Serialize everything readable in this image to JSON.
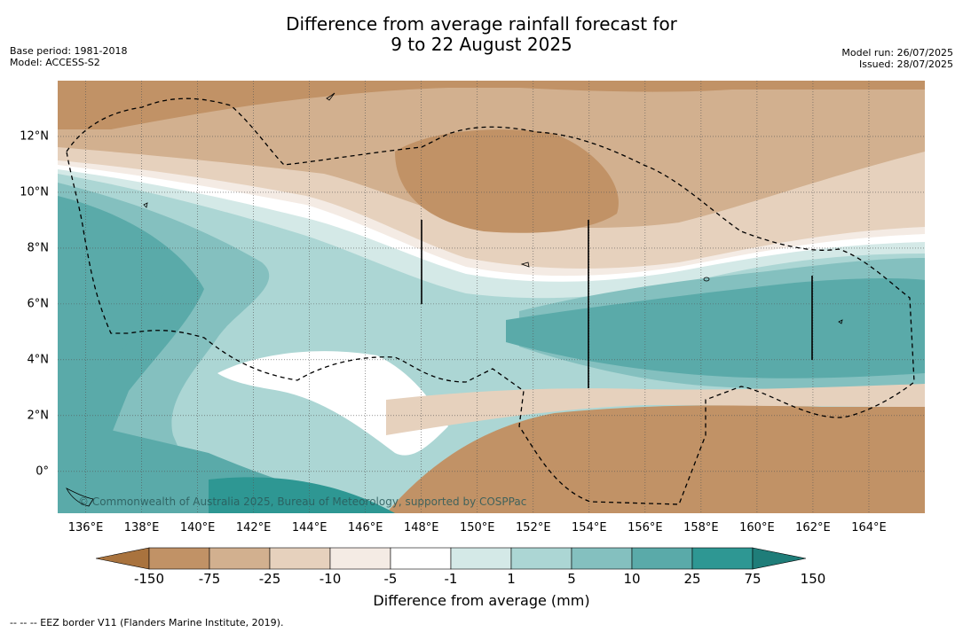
{
  "title": {
    "line1": "Difference from average rainfall forecast for",
    "line2": "9 to 22 August 2025"
  },
  "meta_left": {
    "base_period": "Base period: 1981-2018",
    "model": "Model: ACCESS-S2"
  },
  "meta_right": {
    "model_run": "Model run: 26/07/2025",
    "issued": "Issued: 28/07/2025"
  },
  "map": {
    "lon_range": [
      135,
      166
    ],
    "lat_range": [
      -1.5,
      14
    ],
    "lat_ticks": [
      {
        "value": 12,
        "label": "12°N"
      },
      {
        "value": 10,
        "label": "10°N"
      },
      {
        "value": 8,
        "label": "8°N"
      },
      {
        "value": 6,
        "label": "6°N"
      },
      {
        "value": 4,
        "label": "4°N"
      },
      {
        "value": 2,
        "label": "2°N"
      },
      {
        "value": 0,
        "label": "0°"
      }
    ],
    "lon_ticks": [
      {
        "value": 136,
        "label": "136°E"
      },
      {
        "value": 138,
        "label": "138°E"
      },
      {
        "value": 140,
        "label": "140°E"
      },
      {
        "value": 142,
        "label": "142°E"
      },
      {
        "value": 144,
        "label": "144°E"
      },
      {
        "value": 146,
        "label": "146°E"
      },
      {
        "value": 148,
        "label": "148°E"
      },
      {
        "value": 150,
        "label": "150°E"
      },
      {
        "value": 152,
        "label": "152°E"
      },
      {
        "value": 154,
        "label": "154°E"
      },
      {
        "value": 156,
        "label": "156°E"
      },
      {
        "value": 158,
        "label": "158°E"
      },
      {
        "value": 160,
        "label": "160°E"
      },
      {
        "value": 162,
        "label": "162°E"
      },
      {
        "value": 164,
        "label": "164°E"
      }
    ],
    "copyright": "© Commonwealth of Australia 2025, Bureau of Meteorology, supported by COSPPac"
  },
  "colorbar": {
    "bins": [
      {
        "label": "-150",
        "color": "#a9733e"
      },
      {
        "label": "-75",
        "color": "#c19266"
      },
      {
        "label": "-25",
        "color": "#d2b08f"
      },
      {
        "label": "-10",
        "color": "#e6d1bd"
      },
      {
        "label": "-5",
        "color": "#f4ebe4"
      },
      {
        "label": "-1",
        "color": "#ffffff"
      },
      {
        "label": "1",
        "color": "#d4e9e7"
      },
      {
        "label": "5",
        "color": "#acd6d4"
      },
      {
        "label": "10",
        "color": "#84c0bf"
      },
      {
        "label": "25",
        "color": "#5aaaa9"
      },
      {
        "label": "75",
        "color": "#2e9793"
      },
      {
        "label": "150",
        "color": "#1f7d79"
      }
    ],
    "label": "Difference from average (mm)"
  },
  "footnote": "--  --  -- EEZ border V11 (Flanders Marine Institute, 2019)."
}
